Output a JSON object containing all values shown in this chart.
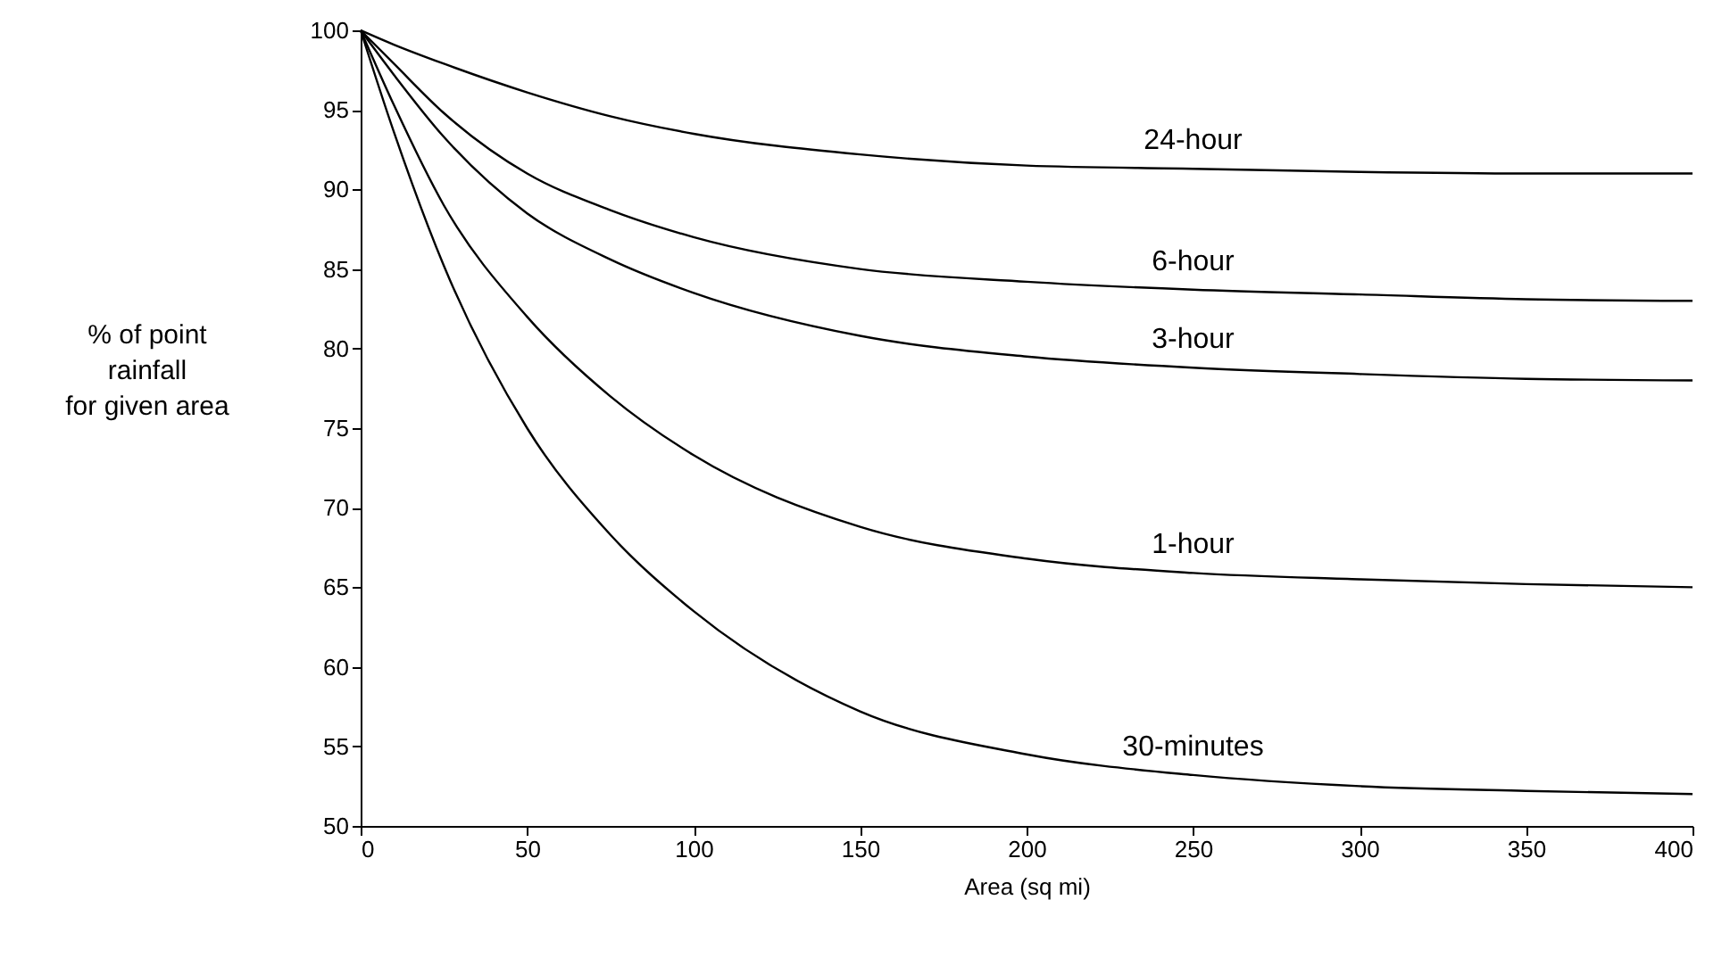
{
  "chart_data": {
    "type": "line",
    "xlabel": "Area (sq mi)",
    "ylabel": "% of point\nrainfall\nfor given area",
    "x": [
      0,
      10,
      25,
      50,
      75,
      100,
      150,
      200,
      250,
      300,
      350,
      400
    ],
    "series": [
      {
        "name": "24-hour",
        "color": "#000000",
        "values": [
          100,
          99.1,
          97.9,
          96.1,
          94.6,
          93.5,
          92.2,
          91.5,
          91.3,
          91.1,
          91,
          91
        ]
      },
      {
        "name": "6-hour",
        "color": "#000000",
        "values": [
          100,
          97.9,
          94.8,
          91,
          88.7,
          87,
          85,
          84.2,
          83.7,
          83.4,
          83.1,
          83
        ]
      },
      {
        "name": "3-hour",
        "color": "#000000",
        "values": [
          100,
          97.2,
          93.3,
          88.5,
          85.6,
          83.5,
          80.8,
          79.5,
          78.8,
          78.4,
          78.1,
          78
        ]
      },
      {
        "name": "1-hour",
        "color": "#000000",
        "values": [
          100,
          95.3,
          89,
          82,
          77,
          73.3,
          68.8,
          66.8,
          65.9,
          65.5,
          65.2,
          65
        ]
      },
      {
        "name": "30-minutes",
        "color": "#000000",
        "values": [
          100,
          93.6,
          85.2,
          75,
          68.3,
          63.5,
          57.2,
          54.5,
          53.2,
          52.5,
          52.2,
          52
        ]
      }
    ],
    "xlim": [
      0,
      400
    ],
    "xticks": [
      0,
      50,
      100,
      150,
      200,
      250,
      300,
      350,
      400
    ],
    "ylim": [
      50,
      100
    ],
    "yticks": [
      50,
      55,
      60,
      65,
      70,
      75,
      80,
      85,
      90,
      95,
      100
    ],
    "grid": false,
    "marker": "none",
    "line_style": "solid"
  }
}
